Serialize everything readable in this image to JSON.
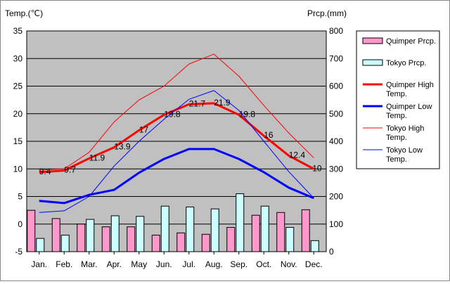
{
  "chart_data": {
    "type": "bar",
    "categories": [
      "Jan.",
      "Feb.",
      "Mar.",
      "Apr.",
      "May",
      "Jun.",
      "Jul.",
      "Aug.",
      "Sep.",
      "Oct.",
      "Nov.",
      "Dec."
    ],
    "y_left": {
      "label": "Temp.(℃)",
      "ylim": [
        -5,
        35
      ],
      "ticks": [
        -5,
        0,
        5,
        10,
        15,
        20,
        25,
        30,
        35
      ]
    },
    "y_right": {
      "label": "Prcp.(mm)",
      "ylim": [
        0,
        800
      ],
      "ticks": [
        0,
        100,
        200,
        300,
        400,
        500,
        600,
        700,
        800
      ]
    },
    "grid": true,
    "legend_position": "right",
    "series": [
      {
        "name": "Quimper Prcp.",
        "type": "bar",
        "axis": "right",
        "color": "#ff99cc",
        "values": [
          150,
          120,
          100,
          90,
          90,
          60,
          68,
          63,
          88,
          132,
          142,
          152
        ]
      },
      {
        "name": "Tokyo Prcp.",
        "type": "bar",
        "axis": "right",
        "color": "#ccffff",
        "values": [
          48,
          60,
          117,
          130,
          128,
          165,
          162,
          155,
          210,
          165,
          88,
          40
        ]
      },
      {
        "name": "Quimper High Temp.",
        "type": "line",
        "axis": "left",
        "color": "#ff0000",
        "width": 3,
        "values": [
          9.4,
          9.7,
          11.9,
          13.9,
          17.0,
          19.8,
          21.7,
          21.9,
          19.8,
          16.0,
          12.4,
          10.0
        ],
        "data_labels": [
          "9.4",
          "9.7",
          "11.9",
          "13.9",
          "17",
          "19.8",
          "21.7",
          "21.9",
          "19.8",
          "16",
          "12.4",
          "10"
        ]
      },
      {
        "name": "Quimper Low Temp.",
        "type": "line",
        "axis": "left",
        "color": "#0000ff",
        "width": 3,
        "values": [
          4.2,
          3.8,
          5.3,
          6.2,
          9.3,
          11.8,
          13.6,
          13.6,
          11.8,
          9.4,
          6.6,
          4.7
        ]
      },
      {
        "name": "Tokyo High Temp.",
        "type": "line",
        "axis": "left",
        "color": "#ff0000",
        "width": 1,
        "values": [
          9.8,
          10.0,
          13.0,
          18.5,
          22.5,
          25.0,
          29.0,
          30.8,
          26.8,
          21.5,
          16.5,
          12.0
        ]
      },
      {
        "name": "Tokyo Low Temp.",
        "type": "line",
        "axis": "left",
        "color": "#0000ff",
        "width": 1,
        "values": [
          2.1,
          2.4,
          5.0,
          10.5,
          15.0,
          19.0,
          22.6,
          24.2,
          20.6,
          15.0,
          9.5,
          4.7
        ]
      }
    ]
  },
  "legend": [
    {
      "text": "Quimper Prcp.",
      "kind": "bar",
      "color": "#ff99cc"
    },
    {
      "text": "Tokyo Prcp.",
      "kind": "bar",
      "color": "#ccffff"
    },
    {
      "text": "Quimper High Temp.",
      "kind": "line",
      "color": "#ff0000",
      "thick": true
    },
    {
      "text": "Quimper Low Temp.",
      "kind": "line",
      "color": "#0000ff",
      "thick": true
    },
    {
      "text": "Tokyo High Temp.",
      "kind": "line",
      "color": "#ff0000",
      "thick": false
    },
    {
      "text": "Tokyo Low Temp.",
      "kind": "line",
      "color": "#0000ff",
      "thick": false
    }
  ],
  "colors": {
    "plot_bg": "#c0c0c0",
    "grid": "#000000"
  }
}
